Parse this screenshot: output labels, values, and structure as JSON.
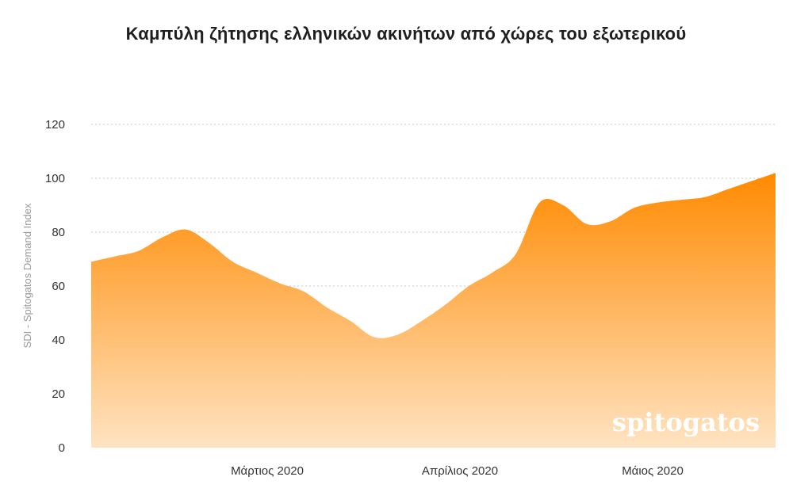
{
  "chart_data": {
    "type": "area",
    "title": "Καμπύλη ζήτησης ελληνικών ακινήτων από χώρες του εξωτερικού",
    "ylabel": "SDI - Spitogatos Demand Index",
    "xlabel": "",
    "ylim": [
      0,
      120
    ],
    "yticks": [
      0,
      20,
      40,
      60,
      80,
      100,
      120
    ],
    "xticks": [
      "Μάρτιος 2020",
      "Απρίλιος 2020",
      "Μάιος 2020"
    ],
    "grid": true,
    "colors": {
      "top": "#FF8A00",
      "bottom": "#FFE3C2"
    },
    "series": [
      {
        "values": [
          69,
          71,
          73,
          78,
          81,
          76,
          69,
          65,
          61,
          58,
          52,
          47,
          41,
          42,
          47,
          53,
          60,
          65,
          72,
          91,
          90,
          83,
          84,
          89,
          91,
          92,
          93,
          96,
          99,
          102
        ]
      }
    ]
  },
  "watermark": "spitogatos"
}
